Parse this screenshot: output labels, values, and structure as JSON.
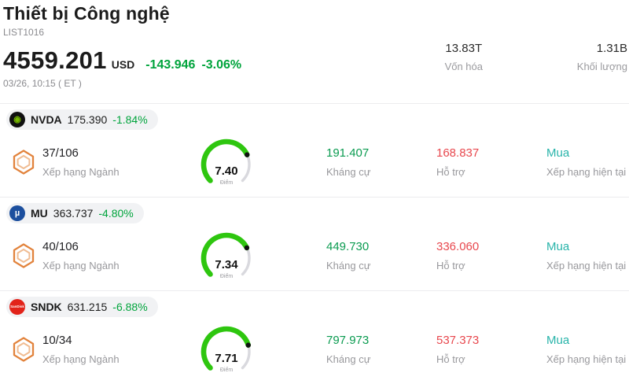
{
  "header": {
    "title": "Thiết bị Công nghệ",
    "list_id": "LIST1016",
    "price": "4559.201",
    "currency": "USD",
    "change": "-143.946",
    "change_pct": "-3.06%",
    "datetime": "03/26, 10:15 ( ET )",
    "stats": [
      {
        "value": "13.83T",
        "label": "Vốn hóa"
      },
      {
        "value": "1.31B",
        "label": "Khối lượng"
      }
    ]
  },
  "labels": {
    "rank": "Xếp hạng Ngành",
    "score": "Điểm",
    "resistance": "Kháng cự",
    "support": "Hỗ trợ",
    "rating": "Xếp hạng hiện tại"
  },
  "rows": [
    {
      "symbol": "NVDA",
      "price": "175.390",
      "change_pct": "-1.84%",
      "rank": "37/106",
      "score": 7.4,
      "score_text": "7.40",
      "resistance": "191.407",
      "support": "168.837",
      "rating": "Mua",
      "logo_bg": "#101010",
      "logo_fg": "#76b900",
      "logo_glyph": "◉"
    },
    {
      "symbol": "MU",
      "price": "363.737",
      "change_pct": "-4.80%",
      "rank": "40/106",
      "score": 7.34,
      "score_text": "7.34",
      "resistance": "449.730",
      "support": "336.060",
      "rating": "Mua",
      "logo_bg": "#1c4f9e",
      "logo_fg": "#ffffff",
      "logo_glyph": "µ"
    },
    {
      "symbol": "SNDK",
      "price": "631.215",
      "change_pct": "-6.88%",
      "rank": "10/34",
      "score": 7.71,
      "score_text": "7.71",
      "resistance": "797.973",
      "support": "537.373",
      "rating": "Mua",
      "logo_bg": "#e2231a",
      "logo_fg": "#ffffff",
      "logo_glyph": "SanDisk"
    }
  ],
  "colors": {
    "positive": "#00a43c",
    "resistance_green": "#0a9b50",
    "support_red": "#e8484e",
    "rating_teal": "#28b4aa",
    "gauge_green": "#2ec60f",
    "hex_orange": "#e2833c",
    "hex_orange_light": "#f0bc92"
  }
}
